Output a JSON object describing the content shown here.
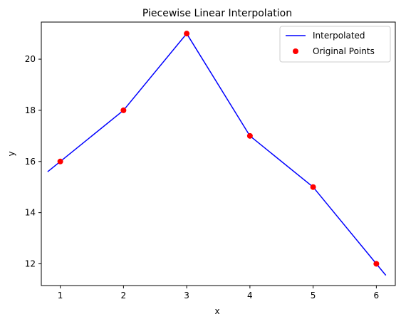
{
  "chart_data": {
    "type": "line",
    "title": "Piecewise Linear Interpolation",
    "xlabel": "x",
    "ylabel": "y",
    "xlim": [
      0.7,
      6.3
    ],
    "ylim": [
      11.15,
      21.45
    ],
    "xticks": [
      1,
      2,
      3,
      4,
      5,
      6
    ],
    "yticks": [
      12,
      14,
      16,
      18,
      20
    ],
    "grid": false,
    "legend_position": "top-right",
    "series": [
      {
        "name": "Interpolated",
        "kind": "line",
        "color": "#0000ff",
        "x": [
          0.8,
          1,
          2,
          3,
          4,
          5,
          6,
          6.15
        ],
        "y": [
          15.6,
          16,
          18,
          21,
          17,
          15,
          12,
          11.55
        ]
      },
      {
        "name": "Original Points",
        "kind": "scatter",
        "color": "#ff0000",
        "x": [
          1,
          2,
          3,
          4,
          5,
          6
        ],
        "y": [
          16,
          18,
          21,
          17,
          15,
          12
        ]
      }
    ]
  }
}
